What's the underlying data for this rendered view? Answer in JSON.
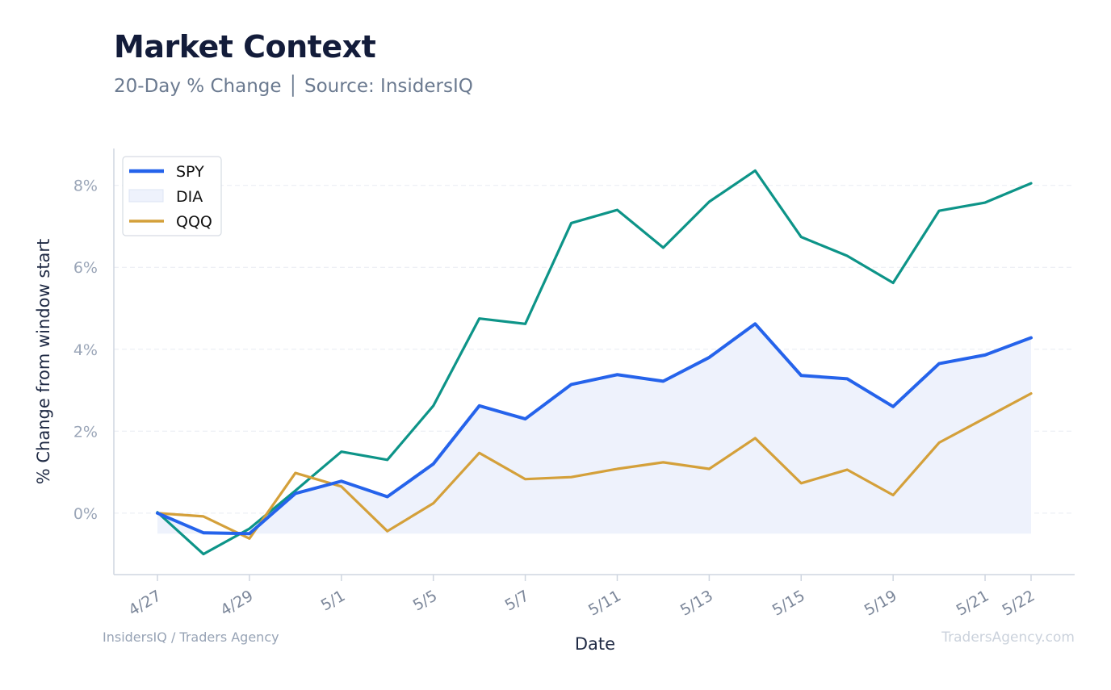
{
  "header": {
    "title": "Market Context",
    "subtitle": "20-Day % Change │ Source: InsidersIQ"
  },
  "footer": {
    "left": "InsidersIQ / Traders Agency",
    "right": "TradersAgency.com"
  },
  "chart_data": {
    "type": "line",
    "xlabel": "Date",
    "ylabel": "% Change from window start",
    "ylim": [
      -1.5,
      8.9
    ],
    "yticks": [
      0,
      2,
      4,
      6,
      8
    ],
    "ytick_labels": [
      "0%",
      "2%",
      "4%",
      "6%",
      "8%"
    ],
    "grid": true,
    "legend_position": "top-left",
    "x_dates": [
      "4/27",
      "4/28",
      "4/29",
      "4/30",
      "5/1",
      "5/4",
      "5/5",
      "5/6",
      "5/7",
      "5/8",
      "5/11",
      "5/12",
      "5/13",
      "5/14",
      "5/15",
      "5/18",
      "5/19",
      "5/20",
      "5/21",
      "5/22"
    ],
    "xtick_labels": [
      "4/27",
      "4/29",
      "5/1",
      "5/5",
      "5/7",
      "5/11",
      "5/13",
      "5/15",
      "5/19",
      "5/21",
      "5/22"
    ],
    "series": [
      {
        "name": "SPY",
        "color": "#2563eb",
        "values": [
          0.0,
          -0.48,
          -0.5,
          0.48,
          0.78,
          0.4,
          1.2,
          2.62,
          2.3,
          3.14,
          3.38,
          3.22,
          3.8,
          4.62,
          3.36,
          3.28,
          2.6,
          3.65,
          3.86,
          4.28
        ]
      },
      {
        "name": "DIA",
        "color": "#0d9488",
        "fill_color": "#eef2fc",
        "values": [
          0.02,
          -1.0,
          -0.38,
          0.55,
          1.5,
          1.3,
          2.62,
          4.75,
          4.62,
          7.08,
          7.4,
          6.48,
          7.6,
          8.36,
          6.74,
          6.28,
          5.62,
          7.38,
          7.58,
          8.05
        ]
      },
      {
        "name": "QQQ",
        "color": "#d4a03a",
        "values": [
          0.0,
          -0.08,
          -0.62,
          0.98,
          0.65,
          -0.44,
          0.24,
          1.47,
          0.83,
          0.88,
          1.08,
          1.24,
          1.08,
          1.83,
          0.73,
          1.06,
          0.44,
          1.72,
          2.32,
          2.92
        ]
      }
    ]
  }
}
